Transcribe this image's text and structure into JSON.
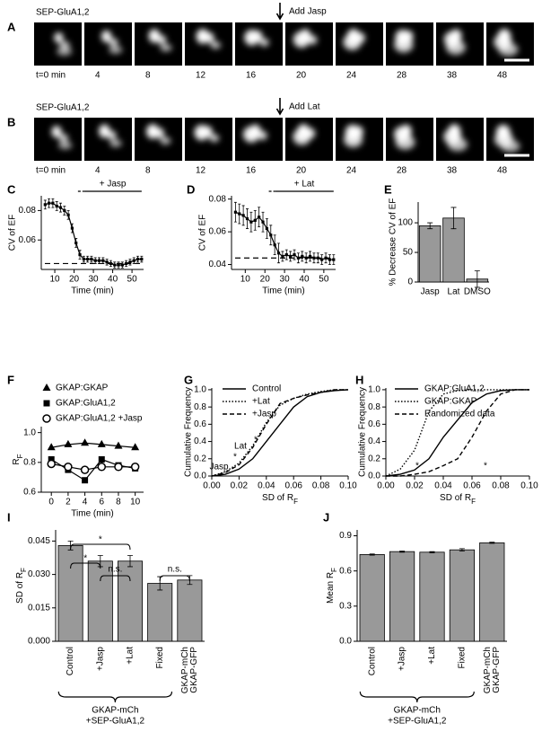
{
  "panels": [
    {
      "letter": "A",
      "title": "SEP-GluA1,2",
      "annotation": "Add Jasp",
      "times": [
        "t=0 min",
        "4",
        "8",
        "12",
        "16",
        "20",
        "24",
        "28",
        "38",
        "48"
      ]
    },
    {
      "letter": "B",
      "title": "SEP-GluA1,2",
      "annotation": "Add Lat",
      "times": [
        "t=0 min",
        "4",
        "8",
        "12",
        "16",
        "20",
        "24",
        "28",
        "38",
        "48"
      ]
    }
  ],
  "chart_data": [
    {
      "panel": "C",
      "type": "line",
      "x": [
        5,
        7,
        9,
        11,
        13,
        15,
        17,
        19,
        21,
        23,
        25,
        27,
        29,
        31,
        33,
        35,
        37,
        39,
        41,
        43,
        45,
        47,
        49,
        51,
        53,
        55
      ],
      "series": [
        {
          "color": "#000000",
          "values": [
            0.084,
            0.085,
            0.085,
            0.083,
            0.082,
            0.08,
            0.077,
            0.068,
            0.058,
            0.05,
            0.047,
            0.047,
            0.047,
            0.046,
            0.046,
            0.046,
            0.045,
            0.044,
            0.043,
            0.043,
            0.043,
            0.044,
            0.045,
            0.046,
            0.047,
            0.047
          ],
          "errors": [
            0.003,
            0.003,
            0.003,
            0.003,
            0.003,
            0.003,
            0.003,
            0.003,
            0.003,
            0.003,
            0.002,
            0.002,
            0.002,
            0.002,
            0.002,
            0.002,
            0.002,
            0.002,
            0.002,
            0.002,
            0.002,
            0.002,
            0.002,
            0.002,
            0.002,
            0.002
          ]
        }
      ],
      "xlim": [
        3,
        56
      ],
      "xticks": [
        10,
        20,
        30,
        40,
        50
      ],
      "ylim": [
        0.04,
        0.09
      ],
      "yticks": [
        0.06,
        0.08
      ],
      "xlabel": "Time (min)",
      "ylabel": "CV of EF",
      "reference_line": 0.044,
      "treatment": {
        "label": "+ Jasp",
        "start": 22,
        "from": 25,
        "to": 55
      }
    },
    {
      "panel": "D",
      "type": "line",
      "x": [
        5,
        7,
        9,
        11,
        13,
        15,
        17,
        19,
        21,
        23,
        25,
        27,
        29,
        31,
        33,
        35,
        37,
        39,
        41,
        43,
        45,
        47,
        49,
        51,
        53,
        55
      ],
      "series": [
        {
          "color": "#000000",
          "values": [
            0.072,
            0.071,
            0.07,
            0.068,
            0.066,
            0.067,
            0.069,
            0.066,
            0.062,
            0.058,
            0.052,
            0.047,
            0.045,
            0.046,
            0.045,
            0.046,
            0.044,
            0.045,
            0.044,
            0.045,
            0.044,
            0.044,
            0.043,
            0.044,
            0.043,
            0.043
          ],
          "errors": [
            0.006,
            0.006,
            0.006,
            0.006,
            0.006,
            0.006,
            0.006,
            0.006,
            0.006,
            0.006,
            0.006,
            0.006,
            0.003,
            0.003,
            0.003,
            0.003,
            0.003,
            0.003,
            0.003,
            0.003,
            0.003,
            0.003,
            0.003,
            0.003,
            0.003,
            0.003
          ]
        }
      ],
      "xlim": [
        3,
        56
      ],
      "xticks": [
        10,
        20,
        30,
        40,
        50
      ],
      "ylim": [
        0.037,
        0.082
      ],
      "yticks": [
        0.04,
        0.06,
        0.08
      ],
      "xlabel": "Time (min)",
      "ylabel": "CV of EF",
      "reference_line": 0.044,
      "treatment": {
        "label": "+ Lat",
        "start": 22,
        "from": 25,
        "to": 55
      }
    },
    {
      "panel": "E",
      "type": "bar",
      "categories": [
        "Jasp",
        "Lat",
        "DMSO"
      ],
      "values": [
        95,
        108,
        5
      ],
      "errors": [
        5,
        18,
        14
      ],
      "color": "#999999",
      "ylim": [
        0,
        135
      ],
      "yticks": [
        0,
        50,
        100
      ],
      "ylabel": "% Decrease CV of EF"
    },
    {
      "panel": "F",
      "type": "line",
      "x": [
        0,
        2,
        4,
        6,
        8,
        10
      ],
      "series": [
        {
          "name": "GKAP:GKAP",
          "marker": "triangle",
          "color": "#000000",
          "values": [
            0.9,
            0.92,
            0.93,
            0.92,
            0.91,
            0.9
          ]
        },
        {
          "name": "GKAP:GluA1,2",
          "marker": "square",
          "color": "#000000",
          "values": [
            0.82,
            0.75,
            0.68,
            0.82,
            0.78,
            0.76
          ]
        },
        {
          "name": "GKAP:GluA1,2 +Jasp",
          "marker": "circle",
          "color": "#000000",
          "values": [
            0.79,
            0.77,
            0.75,
            0.77,
            0.77,
            0.77
          ]
        }
      ],
      "xlim": [
        -1.2,
        11
      ],
      "xticks": [
        0,
        2,
        4,
        6,
        8,
        10
      ],
      "ylim": [
        0.6,
        1.04
      ],
      "yticks": [
        0.6,
        0.8,
        {
          "value": 1,
          "label": "1.0"
        }
      ],
      "xlabel": "Time (min)",
      "ylabel": [
        "R",
        "F"
      ]
    },
    {
      "panel": "G",
      "type": "line",
      "x": [
        0,
        0.01,
        0.02,
        0.03,
        0.04,
        0.05,
        0.06,
        0.07,
        0.08,
        0.09,
        0.1
      ],
      "series": [
        {
          "name": "Control",
          "dash": "solid",
          "color": "#000000",
          "values": [
            0,
            0.02,
            0.08,
            0.2,
            0.4,
            0.6,
            0.8,
            0.92,
            0.97,
            0.99,
            1
          ]
        },
        {
          "name": "+Lat",
          "dash": "dotted",
          "color": "#000000",
          "values": [
            0,
            0.05,
            0.15,
            0.35,
            0.62,
            0.82,
            0.9,
            0.95,
            0.98,
            1,
            1
          ]
        },
        {
          "name": "+Jasp",
          "dash": "dashed",
          "color": "#000000",
          "values": [
            0,
            0.04,
            0.13,
            0.33,
            0.6,
            0.84,
            0.9,
            0.94,
            0.97,
            1,
            1
          ]
        }
      ],
      "xlim": [
        0,
        0.1
      ],
      "xticks": [
        {
          "value": 0,
          "label": "0.00"
        },
        {
          "value": 0.02,
          "label": "0.02"
        },
        {
          "value": 0.04,
          "label": "0.04"
        },
        {
          "value": 0.06,
          "label": "0.06"
        },
        {
          "value": 0.08,
          "label": "0.08"
        },
        {
          "value": 0.1,
          "label": "0.10"
        }
      ],
      "ylim": [
        0,
        1.02
      ],
      "yticks": [
        {
          "value": 0,
          "label": "0.0"
        },
        0.2,
        0.4,
        0.6,
        0.8,
        {
          "value": 1,
          "label": "1.0"
        }
      ],
      "xlabel": [
        "SD of R",
        "F"
      ],
      "ylabel": "Cumulative Frequency",
      "annotations": [
        "Lat",
        "*",
        "Jasp",
        "*"
      ]
    },
    {
      "panel": "H",
      "type": "line",
      "x": [
        0,
        0.01,
        0.02,
        0.03,
        0.04,
        0.05,
        0.06,
        0.07,
        0.08,
        0.09,
        0.1
      ],
      "series": [
        {
          "name": "GKAP:GluA1,2",
          "dash": "solid",
          "color": "#000000",
          "values": [
            0,
            0.02,
            0.07,
            0.2,
            0.45,
            0.65,
            0.85,
            0.95,
            0.99,
            1,
            1
          ]
        },
        {
          "name": "GKAP:GKAP",
          "dash": "dotted",
          "color": "#000000",
          "values": [
            0,
            0.08,
            0.3,
            0.75,
            0.95,
            0.99,
            1,
            1,
            1,
            1,
            1
          ]
        },
        {
          "name": "Randomized data",
          "dash": "dashed",
          "color": "#000000",
          "values": [
            0,
            0,
            0.02,
            0.05,
            0.12,
            0.2,
            0.45,
            0.75,
            0.95,
            1,
            1
          ]
        }
      ],
      "xlim": [
        0,
        0.1
      ],
      "xticks": [
        {
          "value": 0,
          "label": "0.00"
        },
        {
          "value": 0.02,
          "label": "0.02"
        },
        {
          "value": 0.04,
          "label": "0.04"
        },
        {
          "value": 0.06,
          "label": "0.06"
        },
        {
          "value": 0.08,
          "label": "0.08"
        },
        {
          "value": 0.1,
          "label": "0.10"
        }
      ],
      "ylim": [
        0,
        1.02
      ],
      "yticks": [
        {
          "value": 0,
          "label": "0.0"
        },
        0.2,
        0.4,
        0.6,
        0.8,
        {
          "value": 1,
          "label": "1.0"
        }
      ],
      "xlabel": [
        "SD of R",
        "F"
      ],
      "ylabel": "Cumulative Frequency",
      "annotations": [
        "*",
        "*"
      ]
    },
    {
      "panel": "I",
      "type": "bar",
      "categories": [
        "Control",
        "+Jasp",
        "+Lat",
        "Fixed",
        [
          "GKAP-mCh",
          "GKAP-GFP"
        ]
      ],
      "values": [
        0.043,
        0.036,
        0.036,
        0.026,
        0.0275
      ],
      "errors": [
        0.002,
        0.0025,
        0.0025,
        0.003,
        0.002
      ],
      "color": "#999999",
      "ylim": [
        0,
        0.05
      ],
      "yticks": [
        {
          "value": 0,
          "label": "0.000"
        },
        {
          "value": 0.015,
          "label": "0.015"
        },
        {
          "value": 0.03,
          "label": "0.030"
        },
        {
          "value": 0.045,
          "label": "0.045"
        }
      ],
      "ylabel": [
        "SD of R",
        "F"
      ],
      "annotations": [
        "*",
        "*",
        "n.s.",
        "n.s."
      ],
      "group_label": [
        "GKAP-mCh",
        "+SEP-GluA1,2"
      ]
    },
    {
      "panel": "J",
      "type": "bar",
      "categories": [
        "Control",
        "+Jasp",
        "+Lat",
        "Fixed",
        [
          "GKAP-mCh",
          "GKAP-GFP"
        ]
      ],
      "values": [
        0.74,
        0.765,
        0.76,
        0.78,
        0.84
      ],
      "errors": [
        0.005,
        0.005,
        0.005,
        0.01,
        0.005
      ],
      "color": "#999999",
      "ylim": [
        0,
        0.95
      ],
      "yticks": [
        {
          "value": 0,
          "label": "0.0"
        },
        0.3,
        0.6,
        0.9
      ],
      "ylabel": [
        "Mean R",
        "F"
      ],
      "group_label": [
        "GKAP-mCh",
        "+SEP-GluA1,2"
      ]
    }
  ]
}
